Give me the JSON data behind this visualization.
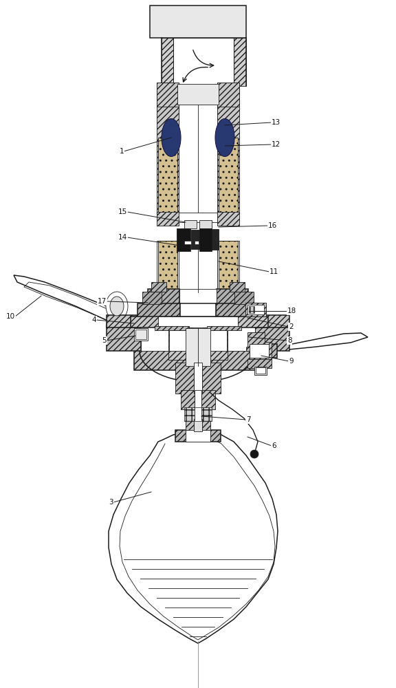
{
  "bg_color": "#ffffff",
  "line_color": "#1a1a1a",
  "figsize": [
    5.76,
    10.0
  ],
  "dpi": 100,
  "label_fontsize": 7.5,
  "lw_main": 1.1,
  "lw_thin": 0.6,
  "hatch_color": "#1a1a1a",
  "gray_light": "#d8d8d8",
  "gray_mid": "#b8b8b8",
  "sandy": "#cccccc"
}
